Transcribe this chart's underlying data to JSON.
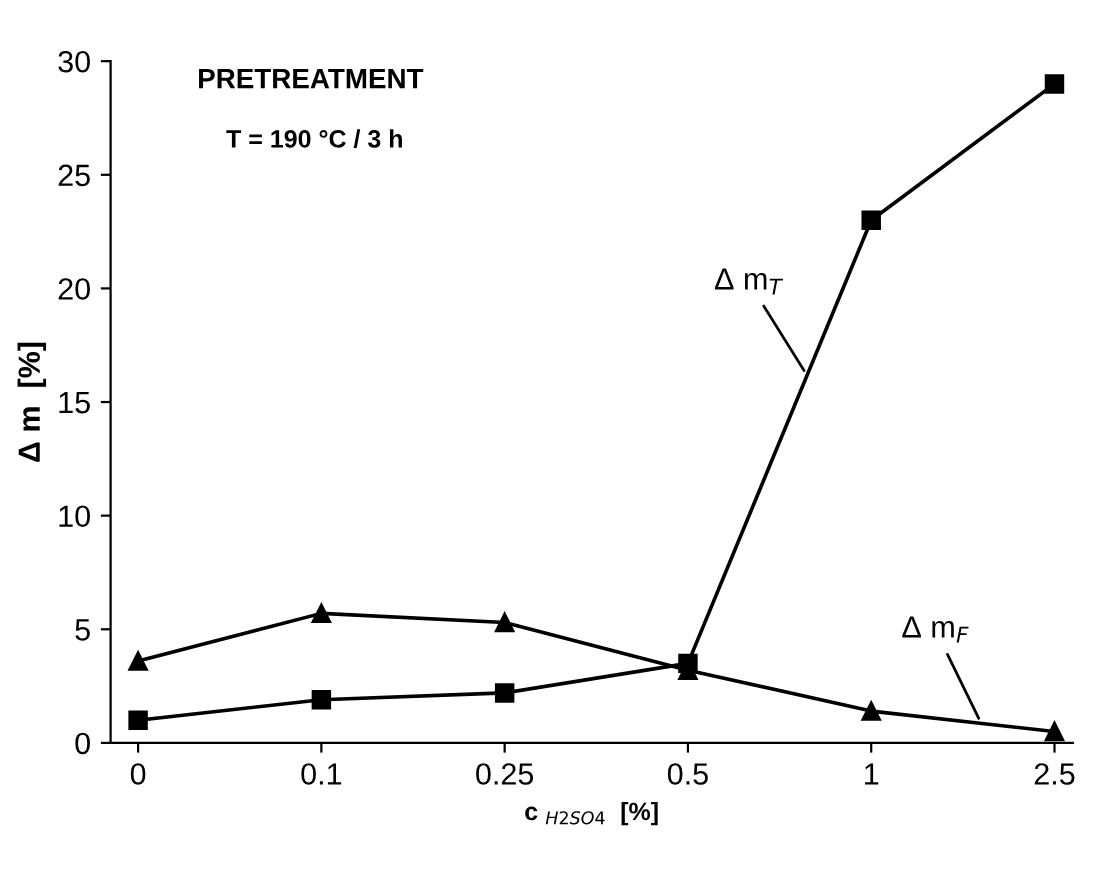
{
  "chart_data": {
    "type": "line",
    "title": "PRETREATMENT",
    "subtitle": "T = 190 °C / 3 h",
    "xlabel": "c $_{H2SO4}$  [%]",
    "ylabel": "Δ m  [%]",
    "categories": [
      "0",
      "0.1",
      "0.25",
      "0.5",
      "1",
      "2.5"
    ],
    "series": [
      {
        "name": "Δ m$_{T}$",
        "color": "#000000",
        "marker": "square",
        "values": [
          1.0,
          1.9,
          2.2,
          3.5,
          23,
          29
        ]
      },
      {
        "name": "Δ m$_{F}$",
        "color": "#000000",
        "marker": "triangle",
        "values": [
          3.6,
          5.7,
          5.3,
          3.2,
          1.4,
          0.5
        ]
      }
    ],
    "ylim": [
      0,
      30
    ],
    "yticks": [
      0,
      5,
      10,
      15,
      20,
      25,
      30
    ],
    "grid": false,
    "legend": false,
    "line_style": "solid"
  }
}
